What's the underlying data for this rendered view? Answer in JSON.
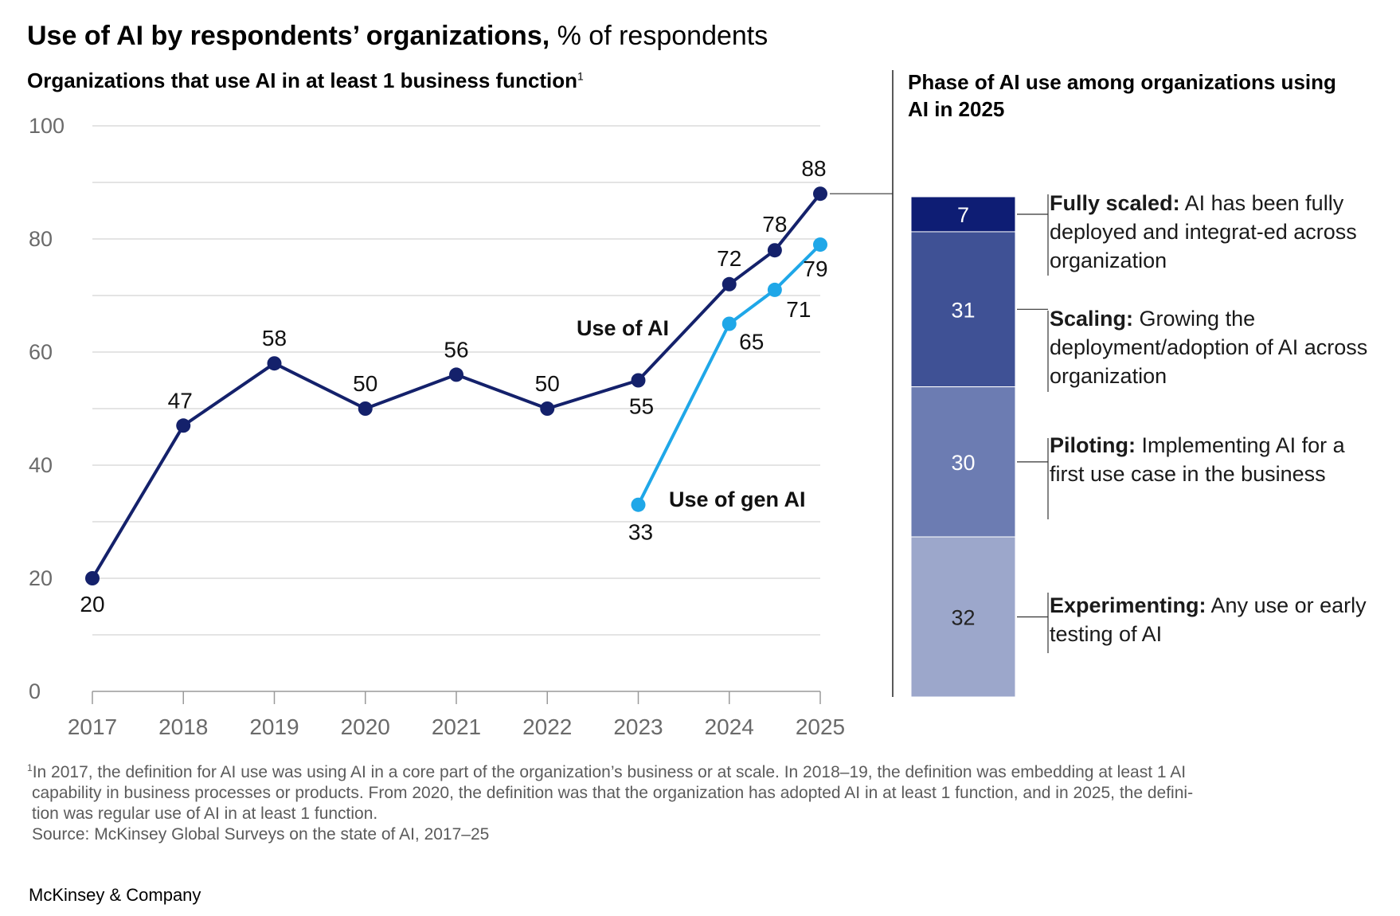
{
  "title": {
    "bold": "Use of AI by respondents’ organizations,",
    "normal": " % of respondents"
  },
  "left_subtitle": {
    "text": "Organizations that use AI in at least 1 business function",
    "footnote_mark": "1"
  },
  "right_subtitle": "Phase of AI use among organizations using AI in 2025",
  "phase_labels": [
    {
      "name": "Fully scaled:",
      "desc": " AI has been fully deployed and integrat-ed across organization"
    },
    {
      "name": "Scaling:",
      "desc": " Growing the deployment/adoption of AI across organization"
    },
    {
      "name": "Piloting:",
      "desc": " Implementing AI for a first use case in the business"
    },
    {
      "name": "Experimenting:",
      "desc": " Any use or early testing of AI"
    }
  ],
  "footnote": {
    "mark": "1",
    "lines": [
      "In 2017, the definition for AI use was using AI in a core part of the organization’s business or at scale. In 2018–19, the definition was embedding at least 1 AI",
      "capability in business processes or products. From 2020, the definition was that the organization has adopted AI in at least 1 function, and in 2025, the defini-",
      "tion was regular use of AI in at least 1 function."
    ],
    "source": "Source: McKinsey Global Surveys on the state of AI, 2017–25"
  },
  "brand": "McKinsey & Company",
  "colors": {
    "use_of_ai": "#14216b",
    "use_of_gen_ai": "#1fa7e8",
    "fully_scaled": "#0e1d74",
    "scaling": "#3f5195",
    "piloting": "#6c7cb2",
    "experimenting": "#9ca7cb",
    "grid": "#d4d4d4",
    "axis_text": "#6a6a6a"
  },
  "chart_data": [
    {
      "type": "line",
      "x_ticks": [
        "2017",
        "2018",
        "2019",
        "2020",
        "2021",
        "2022",
        "2023",
        "2024",
        "2025"
      ],
      "y_ticks": [
        0,
        20,
        40,
        60,
        80,
        100
      ],
      "ylim": [
        0,
        100
      ],
      "grid": true,
      "series": [
        {
          "name": "Use of AI",
          "color": "#14216b",
          "x": [
            2017,
            2018,
            2019,
            2020,
            2021,
            2022,
            2023,
            2024,
            2024.5,
            2025
          ],
          "y": [
            20,
            47,
            58,
            50,
            56,
            50,
            55,
            72,
            78,
            88
          ],
          "labels": [
            "20",
            "47",
            "58",
            "50",
            "56",
            "50",
            "55",
            "72",
            "78",
            "88"
          ]
        },
        {
          "name": "Use of gen AI",
          "color": "#1fa7e8",
          "x": [
            2023,
            2024,
            2024.5,
            2025
          ],
          "y": [
            33,
            65,
            71,
            79
          ],
          "labels": [
            "33",
            "65",
            "71",
            "79"
          ]
        }
      ]
    },
    {
      "type": "bar",
      "stacked": true,
      "categories": [
        "2025"
      ],
      "series": [
        {
          "name": "Fully scaled",
          "values": [
            7
          ]
        },
        {
          "name": "Scaling",
          "values": [
            31
          ]
        },
        {
          "name": "Piloting",
          "values": [
            30
          ]
        },
        {
          "name": "Experimenting",
          "values": [
            32
          ]
        }
      ]
    }
  ]
}
